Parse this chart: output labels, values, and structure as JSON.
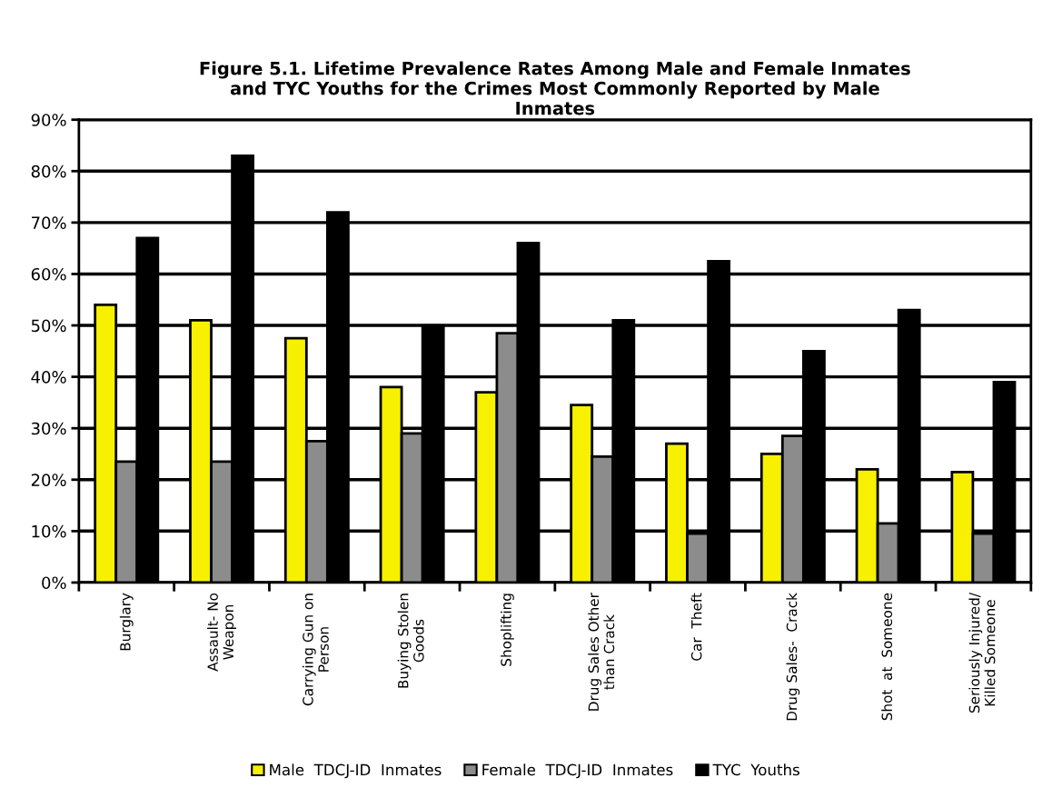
{
  "chart_data": {
    "type": "bar",
    "title": "Figure 5.1. Lifetime Prevalence Rates Among Male and Female Inmates\nand TYC Youths for the Crimes Most Commonly Reported by Male\nInmates",
    "categories": [
      "Burglary",
      "Assault- No\nWeapon",
      "Carrying Gun on\nPerson",
      "Buying Stolen\nGoods",
      "Shoplifting",
      "Drug Sales Other\nthan Crack",
      "Car  Theft",
      "Drug Sales-  Crack",
      "Shot  at  Someone",
      "Seriously Injured/\nKilled Someone"
    ],
    "series": [
      {
        "name": "Male  TDCJ-ID  Inmates",
        "color": "#f7f000",
        "values": [
          54,
          51,
          47.5,
          38,
          37,
          34.5,
          27,
          25,
          22,
          21.5
        ]
      },
      {
        "name": "Female  TDCJ-ID  Inmates",
        "color": "#8c8c8c",
        "values": [
          23.5,
          23.5,
          27.5,
          29,
          48.5,
          24.5,
          9.5,
          28.5,
          11.5,
          9.5
        ]
      },
      {
        "name": "TYC  Youths",
        "color": "#000000",
        "values": [
          67,
          83,
          72,
          50,
          66,
          51,
          62.5,
          45,
          53,
          39
        ]
      }
    ],
    "ylim": [
      0,
      90
    ],
    "yticks": [
      {
        "value": 0,
        "label": "0%"
      },
      {
        "value": 10,
        "label": "10%"
      },
      {
        "value": 20,
        "label": "20%"
      },
      {
        "value": 30,
        "label": "30%"
      },
      {
        "value": 40,
        "label": "40%"
      },
      {
        "value": 50,
        "label": "50%"
      },
      {
        "value": 60,
        "label": "60%"
      },
      {
        "value": 70,
        "label": "70%"
      },
      {
        "value": 80,
        "label": "80%"
      },
      {
        "value": 90,
        "label": "90%"
      }
    ],
    "grid": "y",
    "legend": "bottom"
  }
}
